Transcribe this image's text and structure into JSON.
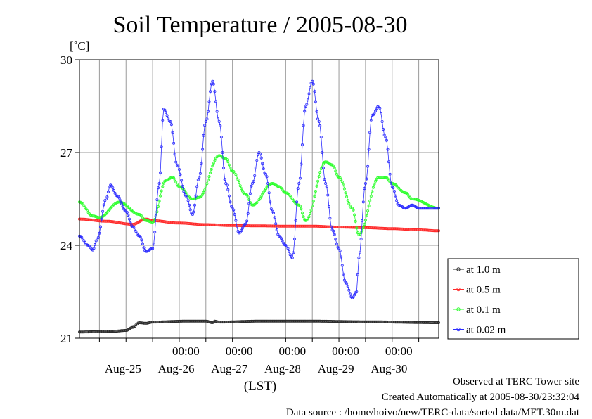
{
  "chart_data": {
    "type": "line",
    "title": "Soil Temperature / 2005-08-30",
    "ylabel": "[˚C]",
    "xlabel": "(LST)",
    "ylim": [
      21,
      30
    ],
    "yticks": [
      21,
      24,
      27,
      30
    ],
    "xlim_hours": [
      -21,
      141
    ],
    "time_ticks": [
      "00:00",
      "00:00",
      "00:00",
      "00:00",
      "00:00"
    ],
    "date_labels": [
      "Aug-25",
      "Aug-26",
      "Aug-27",
      "Aug-28",
      "Aug-29",
      "Aug-30"
    ],
    "grid": true,
    "legend_position": "right",
    "series": [
      {
        "name": "at 1.0 m",
        "color": "#2b2b2b",
        "t": [
          -21,
          -6,
          0,
          3,
          6,
          9,
          12,
          27,
          36,
          39,
          40,
          42,
          60,
          84,
          108,
          141
        ],
        "y": [
          21.2,
          21.22,
          21.25,
          21.35,
          21.5,
          21.48,
          21.52,
          21.55,
          21.55,
          21.5,
          21.55,
          21.52,
          21.55,
          21.55,
          21.53,
          21.5
        ]
      },
      {
        "name": "at 0.5 m",
        "color": "#ff2a2a",
        "t": [
          -21,
          -9,
          3,
          9,
          12,
          24,
          36,
          48,
          60,
          72,
          84,
          96,
          108,
          120,
          132,
          141
        ],
        "y": [
          24.85,
          24.78,
          24.68,
          24.85,
          24.8,
          24.72,
          24.67,
          24.64,
          24.63,
          24.62,
          24.62,
          24.59,
          24.57,
          24.54,
          24.5,
          24.47
        ]
      },
      {
        "name": "at 0.1 m",
        "color": "#2cff2c",
        "t": [
          -21,
          -15,
          -12,
          -3,
          6,
          9,
          12,
          18,
          21,
          24,
          30,
          33,
          42,
          45,
          48,
          54,
          57,
          66,
          69,
          72,
          78,
          81,
          90,
          93,
          96,
          102,
          105,
          114,
          117,
          120,
          126,
          129,
          141
        ],
        "y": [
          25.4,
          24.95,
          24.9,
          25.4,
          25.0,
          24.8,
          24.75,
          26.1,
          26.2,
          25.9,
          25.5,
          25.55,
          26.9,
          26.8,
          26.4,
          25.65,
          25.3,
          26.0,
          25.9,
          25.7,
          25.3,
          24.8,
          26.7,
          26.6,
          26.2,
          25.2,
          24.35,
          26.2,
          26.2,
          26.0,
          25.7,
          25.5,
          25.2
        ]
      },
      {
        "name": "at 0.02 m",
        "color": "#2c2cff",
        "t": [
          -21,
          -17,
          -15,
          -13,
          -9,
          -7,
          -4,
          0,
          3,
          6,
          9,
          12,
          15,
          17,
          20,
          23,
          27,
          30,
          33,
          36,
          39,
          42,
          45,
          48,
          51,
          54,
          57,
          60,
          63,
          66,
          69,
          72,
          75,
          78,
          81,
          84,
          87,
          90,
          93,
          96,
          99,
          102,
          104,
          105,
          108,
          111,
          114,
          117,
          120,
          123,
          126,
          129,
          132,
          135,
          138,
          141
        ],
        "y": [
          24.3,
          24.0,
          23.85,
          24.2,
          25.5,
          25.95,
          25.6,
          25.1,
          24.6,
          24.3,
          23.8,
          23.9,
          26.0,
          28.4,
          28.0,
          26.6,
          25.6,
          25.0,
          26.2,
          28.0,
          29.3,
          28.0,
          26.0,
          25.2,
          24.4,
          24.7,
          26.0,
          27.0,
          26.3,
          25.1,
          24.3,
          24.0,
          23.6,
          26.0,
          28.5,
          29.3,
          28.0,
          26.0,
          24.5,
          23.9,
          22.8,
          22.3,
          22.5,
          23.6,
          26.0,
          28.2,
          28.5,
          27.5,
          25.9,
          25.3,
          25.2,
          25.3,
          25.2,
          25.2,
          25.2,
          25.2
        ]
      }
    ]
  },
  "footer": {
    "observed": "Observed at TERC Tower site",
    "created": "Created Automatically at 2005-08-30/23:32:04",
    "source": "Data source : /home/hoivo/new/TERC-data/sorted  data/MET.30m.dat"
  }
}
